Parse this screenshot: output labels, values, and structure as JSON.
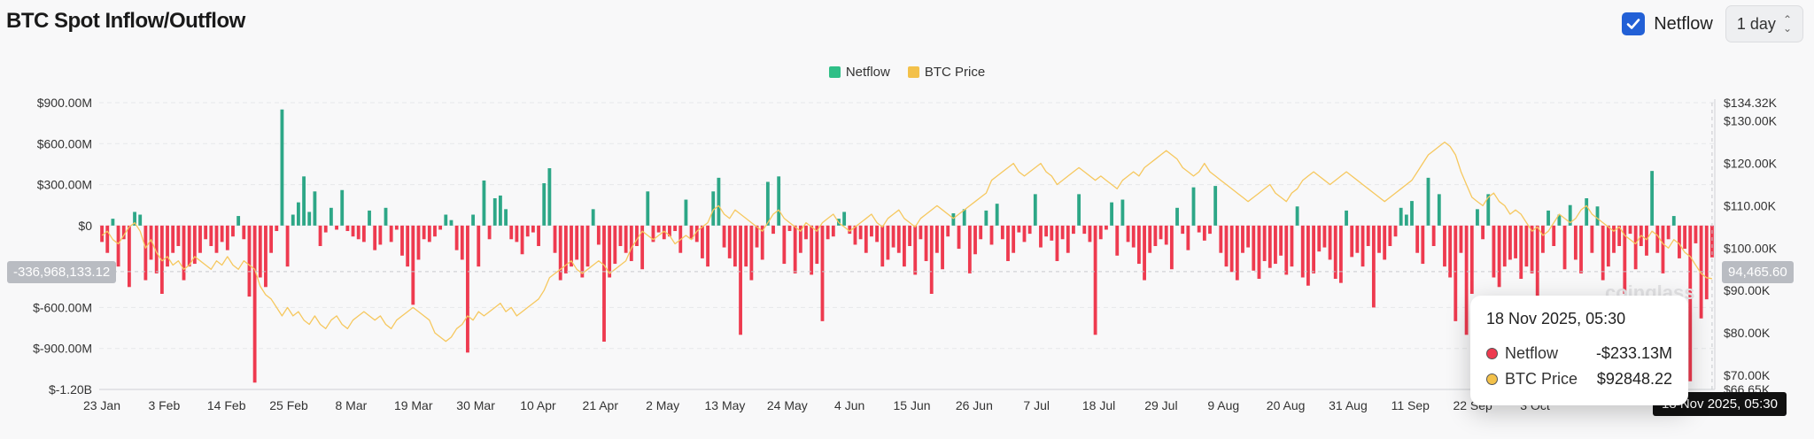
{
  "header": {
    "title": "BTC Spot Inflow/Outflow",
    "checkbox_label": "Netflow",
    "checkbox_checked": true,
    "interval": "1 day"
  },
  "legend": [
    {
      "label": "Netflow",
      "color": "#2fbf87"
    },
    {
      "label": "BTC Price",
      "color": "#f3c14a"
    }
  ],
  "colors": {
    "positive": "#2da787",
    "negative": "#ee3a4f",
    "price": "#f6c85f"
  },
  "crosshair": {
    "left_value": "-336,968,133.12",
    "right_value": "94,465.60",
    "x_label": "18 Nov 2025, 05:30"
  },
  "tooltip": {
    "title": "18 Nov 2025, 05:30",
    "rows": [
      {
        "name": "Netflow",
        "value": "-$233.13M",
        "color": "#ee3a4f"
      },
      {
        "name": "BTC Price",
        "value": "$92848.22",
        "color": "#f3c14a"
      }
    ]
  },
  "watermark": "coinglass",
  "chart_data": {
    "type": "bar",
    "title": "BTC Spot Inflow/Outflow",
    "y_left": {
      "label": "Netflow",
      "ticks": [
        "$900.00M",
        "$600.00M",
        "$300.00M",
        "$0",
        "$-600.00M",
        "$-900.00M",
        "$-1.20B"
      ],
      "ylim": [
        -1200,
        900
      ],
      "unit": "M USD"
    },
    "y_right": {
      "label": "BTC Price",
      "ticks": [
        "$134.32K",
        "$130.00K",
        "$120.00K",
        "$110.00K",
        "$100.00K",
        "$90.00K",
        "$80.00K",
        "$70.00K",
        "$66.65K"
      ],
      "ylim": [
        66.65,
        134.32
      ],
      "unit": "K USD"
    },
    "x_ticks": [
      "23 Jan",
      "3 Feb",
      "14 Feb",
      "25 Feb",
      "8 Mar",
      "19 Mar",
      "30 Mar",
      "10 Apr",
      "21 Apr",
      "2 May",
      "13 May",
      "24 May",
      "4 Jun",
      "15 Jun",
      "26 Jun",
      "7 Jul",
      "18 Jul",
      "29 Jul",
      "9 Aug",
      "20 Aug",
      "31 Aug",
      "11 Sep",
      "22 Sep",
      "3 Oct"
    ],
    "series": [
      {
        "name": "Netflow",
        "type": "bar",
        "values": [
          -120,
          -200,
          50,
          -300,
          -100,
          -450,
          100,
          80,
          -400,
          -250,
          -350,
          -500,
          -300,
          -200,
          -150,
          -400,
          -300,
          -280,
          -200,
          -100,
          -150,
          -200,
          -120,
          -180,
          -80,
          70,
          -100,
          -520,
          -1150,
          -380,
          -450,
          -200,
          -40,
          850,
          -300,
          80,
          170,
          360,
          100,
          250,
          -150,
          -50,
          130,
          -30,
          260,
          -40,
          -80,
          -100,
          -120,
          110,
          -180,
          -140,
          130,
          -120,
          -30,
          -220,
          -300,
          -580,
          -250,
          -100,
          -120,
          -80,
          -30,
          80,
          40,
          -180,
          -250,
          -930,
          80,
          -300,
          330,
          -100,
          200,
          220,
          120,
          -100,
          -120,
          -210,
          -80,
          -50,
          -150,
          310,
          420,
          -200,
          -400,
          -350,
          -300,
          -250,
          -380,
          -300,
          120,
          -140,
          -850,
          -380,
          -280,
          -150,
          -200,
          -260,
          -150,
          -320,
          250,
          -120,
          -50,
          -100,
          -80,
          -40,
          -200,
          190,
          -100,
          -120,
          -240,
          -300,
          250,
          350,
          -160,
          -240,
          -300,
          -800,
          -300,
          -400,
          -160,
          -250,
          320,
          -60,
          360,
          -280,
          -40,
          -350,
          -200,
          -100,
          -360,
          -280,
          -700,
          -100,
          -80,
          50,
          100,
          -60,
          -140,
          -100,
          -200,
          -80,
          -120,
          -300,
          -250,
          -160,
          -200,
          -300,
          -150,
          -360,
          -100,
          -260,
          -500,
          -200,
          -320,
          -80,
          90,
          -170,
          120,
          -350,
          -210,
          -100,
          110,
          -140,
          160,
          -100,
          -260,
          -200,
          -50,
          -120,
          -60,
          230,
          -160,
          -80,
          -110,
          -260,
          -100,
          -200,
          -60,
          230,
          -60,
          -120,
          -800,
          -100,
          -30,
          170,
          -220,
          190,
          -120,
          -160,
          -280,
          -400,
          -200,
          -150,
          -100,
          -140,
          -320,
          130,
          -60,
          -180,
          280,
          -50,
          -110,
          -60,
          290,
          -200,
          -300,
          -340,
          -400,
          -200,
          -160,
          -330,
          -390,
          -260,
          -310,
          -280,
          -220,
          -360,
          -300,
          140,
          -380,
          -440,
          -350,
          -190,
          -160,
          -250,
          -390,
          -420,
          110,
          -230,
          -200,
          -300,
          -150,
          -600,
          -200,
          -250,
          -150,
          -80,
          130,
          80,
          180,
          -200,
          -280,
          350,
          -150,
          230,
          -300,
          -380,
          -700,
          -200,
          -800,
          -500,
          120,
          -100,
          230,
          -380,
          -450,
          -300,
          -250,
          -240,
          -390,
          -300,
          -350,
          -550,
          -200,
          110,
          -150,
          80,
          -320,
          150,
          -250,
          -350,
          200,
          -200,
          140,
          -400,
          -300,
          -200,
          -150,
          -500,
          -60,
          -320,
          -150,
          -220,
          400,
          -200,
          -350,
          -100,
          70,
          -240,
          -170,
          -1140,
          -130,
          -680,
          -540,
          -233
        ]
      },
      {
        "name": "BTC Price",
        "type": "line",
        "points_per_bar": 1,
        "values": [
          103,
          104,
          102,
          101,
          103,
          105,
          106,
          104,
          100,
          102,
          99,
          97,
          98,
          96,
          97,
          95,
          96,
          98,
          97,
          96,
          95,
          97,
          96,
          98,
          96,
          95,
          97,
          96,
          95,
          91,
          89,
          88,
          86,
          84,
          86,
          84,
          85,
          83,
          82,
          84,
          82,
          81,
          83,
          84,
          82,
          81,
          83,
          84,
          85,
          84,
          83,
          84,
          82,
          81,
          83,
          84,
          85,
          86,
          85,
          84,
          83,
          80,
          79,
          78,
          79,
          81,
          82,
          84,
          83,
          85,
          84,
          85,
          86,
          87,
          85,
          86,
          84,
          85,
          86,
          87,
          88,
          90,
          93,
          94,
          95,
          96,
          97,
          95,
          94,
          95,
          96,
          97,
          96,
          94,
          95,
          96,
          97,
          100,
          102,
          104,
          103,
          102,
          103,
          104,
          103,
          101,
          102,
          103,
          102,
          104,
          105,
          106,
          109,
          110,
          108,
          107,
          109,
          108,
          107,
          106,
          105,
          104,
          106,
          108,
          109,
          107,
          106,
          105,
          104,
          106,
          105,
          104,
          106,
          107,
          108,
          106,
          105,
          104,
          105,
          106,
          107,
          108,
          106,
          105,
          107,
          108,
          109,
          107,
          106,
          105,
          107,
          108,
          109,
          110,
          109,
          108,
          107,
          108,
          109,
          110,
          111,
          112,
          113,
          116,
          117,
          118,
          119,
          120,
          118,
          117,
          118,
          119,
          120,
          118,
          117,
          115,
          116,
          117,
          118,
          119,
          118,
          117,
          116,
          117,
          116,
          115,
          114,
          116,
          117,
          118,
          117,
          119,
          120,
          121,
          122,
          123,
          122,
          121,
          119,
          118,
          117,
          118,
          120,
          118,
          117,
          116,
          115,
          114,
          113,
          112,
          111,
          112,
          113,
          114,
          115,
          113,
          112,
          111,
          113,
          114,
          116,
          117,
          118,
          117,
          116,
          115,
          116,
          117,
          118,
          117,
          116,
          115,
          114,
          113,
          112,
          111,
          112,
          113,
          114,
          115,
          116,
          118,
          120,
          122,
          123,
          124,
          125,
          124,
          122,
          118,
          115,
          112,
          111,
          110,
          112,
          113,
          111,
          110,
          108,
          109,
          108,
          106,
          104,
          105,
          103,
          104,
          106,
          108,
          107,
          106,
          107,
          109,
          110,
          108,
          107,
          106,
          105,
          104,
          105,
          103,
          102,
          101,
          103,
          102,
          104,
          103,
          101,
          100,
          102,
          101,
          99,
          98,
          96,
          94,
          93,
          92.8
        ]
      }
    ]
  }
}
